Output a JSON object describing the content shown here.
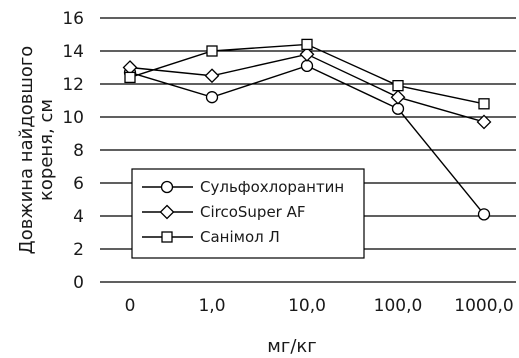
{
  "chart_data": {
    "type": "line",
    "categories": [
      "0",
      "1,0",
      "10,0",
      "100,0",
      "1000,0"
    ],
    "ylim": [
      0,
      16
    ],
    "yticks": [
      0,
      2,
      4,
      6,
      8,
      10,
      12,
      14,
      16
    ],
    "grid": "horizontal",
    "legend_position": "lower-left",
    "xlabel": "мг/кг",
    "ylabel_line1": "Довжина найдовшого",
    "ylabel_line2": "кореня, см",
    "series": [
      {
        "name": "Сульфохлорантин",
        "marker": "circle",
        "values": [
          12.7,
          11.2,
          13.1,
          10.5,
          4.1
        ]
      },
      {
        "name": "CircoSuper AF",
        "marker": "diamond",
        "values": [
          13.0,
          12.5,
          13.8,
          11.2,
          9.7
        ]
      },
      {
        "name": "Санімол Л",
        "marker": "square",
        "values": [
          12.4,
          14.0,
          14.4,
          11.9,
          10.8
        ]
      }
    ]
  }
}
